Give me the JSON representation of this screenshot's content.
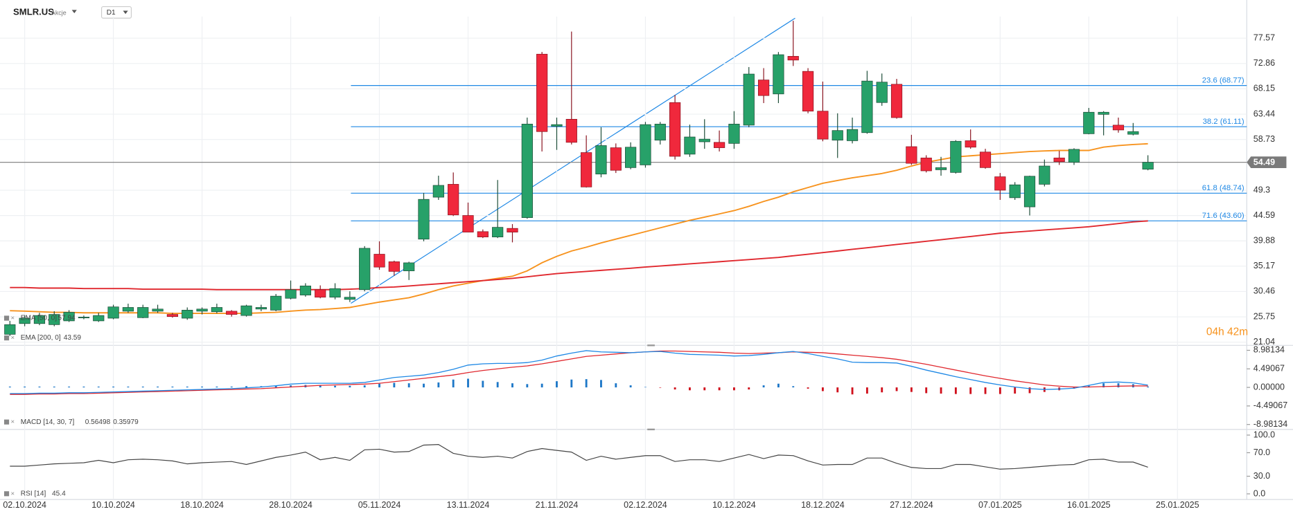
{
  "header": {
    "symbol": "SMLR.US",
    "asset_class": "Akcje",
    "timeframe": "D1"
  },
  "chart_data": [
    {
      "type": "candlestick",
      "categories": [
        null,
        "02.10.2024",
        null,
        null,
        null,
        null,
        null,
        "10.10.2024",
        null,
        null,
        null,
        null,
        null,
        "18.10.2024",
        null,
        null,
        null,
        null,
        null,
        "28.10.2024",
        null,
        null,
        null,
        null,
        null,
        "05.11.2024",
        null,
        null,
        null,
        null,
        null,
        "13.11.2024",
        null,
        null,
        null,
        null,
        null,
        "21.11.2024",
        null,
        null,
        null,
        null,
        null,
        "02.12.2024",
        null,
        null,
        null,
        null,
        null,
        "10.12.2024",
        null,
        null,
        null,
        null,
        null,
        "18.12.2024",
        null,
        null,
        null,
        null,
        null,
        "27.12.2024",
        null,
        null,
        null,
        null,
        null,
        "07.01.2025",
        null,
        null,
        null,
        null,
        null,
        "16.01.2025",
        null,
        null,
        null,
        null,
        null,
        "25.01.2025"
      ],
      "open": [
        22.5,
        24.5,
        24.5,
        24.3,
        25,
        25.6,
        25,
        25.5,
        26.8,
        25.6,
        26.8,
        26.2,
        25.5,
        26.8,
        26.7,
        26.8,
        26,
        27.2,
        27,
        29.2,
        29.8,
        30.8,
        29.4,
        29,
        30.8,
        37.4,
        36,
        34.3,
        40.2,
        48,
        50.4,
        44.6,
        41.6,
        40.6,
        42.2,
        44.2,
        74.6,
        61.2,
        62.5,
        56.3,
        52.3,
        57.2,
        53.5,
        54,
        58.6,
        65.6,
        56,
        58.3,
        58.2,
        58,
        61.4,
        69.8,
        67.2,
        74.2,
        71.4,
        64,
        58.6,
        58.5,
        60,
        65.6,
        69,
        57.4,
        55.3,
        53.1,
        52.6,
        58.5,
        56.4,
        51.8,
        47.9,
        46.2,
        50.4,
        55.3,
        54.5,
        59.8,
        63.4,
        61.4,
        59.7,
        53.2,
        null,
        null
      ],
      "high": [
        25,
        26,
        26.5,
        26.8,
        27,
        26,
        26.5,
        28,
        28.2,
        28,
        28,
        26.5,
        27.5,
        27.5,
        28.2,
        27,
        28,
        28,
        30,
        32.5,
        32,
        31.6,
        32,
        30.5,
        38.9,
        39.8,
        36.2,
        36,
        48.8,
        52,
        52.6,
        47,
        42,
        51.2,
        43,
        62.8,
        75,
        62.8,
        78.8,
        59.5,
        61,
        58,
        58.2,
        62,
        62,
        67,
        61.5,
        62.5,
        60.4,
        64,
        72.2,
        72,
        75,
        80.8,
        72,
        69.5,
        63.6,
        62.8,
        71.5,
        71,
        70,
        59.6,
        55.8,
        55.5,
        58.6,
        60.6,
        57,
        52.5,
        50.8,
        52,
        55,
        56.6,
        57.1,
        64.6,
        64,
        62.8,
        61.8,
        55.8,
        null,
        null
      ],
      "low": [
        22.2,
        24,
        24.2,
        24,
        24.8,
        25.3,
        24.8,
        25.3,
        26.5,
        25.5,
        26.5,
        25.6,
        25.2,
        26.2,
        26.4,
        25.8,
        25.8,
        26.8,
        26.8,
        29,
        29.5,
        29.2,
        29,
        28.5,
        30.5,
        34.5,
        33.4,
        32.6,
        39.8,
        47.5,
        44.5,
        41.5,
        40.4,
        40.4,
        39.6,
        44,
        56.5,
        56.8,
        57.8,
        49.8,
        51.7,
        52.5,
        53.2,
        53.5,
        57.8,
        55,
        55.5,
        57,
        56.5,
        57,
        61,
        65.5,
        65.5,
        72.4,
        63.6,
        58.4,
        55.3,
        58,
        59.8,
        65,
        62.6,
        54,
        52.6,
        52,
        52.4,
        57,
        53.3,
        47.5,
        47.5,
        44.6,
        50,
        54,
        54,
        59.7,
        59.5,
        60,
        59.5,
        53,
        null,
        null
      ],
      "close": [
        24.3,
        25.5,
        26,
        26.2,
        26.6,
        25.7,
        26,
        27.6,
        27.5,
        27.5,
        27.2,
        25.8,
        27,
        27.2,
        27.5,
        26.2,
        27.8,
        27.5,
        29.6,
        30.8,
        31.5,
        29.4,
        31,
        29.4,
        38.5,
        35,
        34.2,
        35.8,
        47.6,
        50.2,
        44.7,
        41.5,
        40.6,
        42.4,
        41.5,
        61.6,
        60.2,
        61.5,
        58.2,
        49.9,
        57.6,
        53,
        57.3,
        61.5,
        61.6,
        55.6,
        59.2,
        58.8,
        57.2,
        61.6,
        70.9,
        66.9,
        74.5,
        73.5,
        64,
        58.8,
        60.4,
        60.6,
        69.6,
        69.4,
        62.8,
        54.3,
        52.9,
        53.5,
        58.4,
        57.3,
        53.5,
        49.3,
        50.3,
        51.9,
        53.8,
        54.6,
        56.9,
        63.8,
        63.8,
        60.5,
        60.2,
        54.49,
        null,
        null
      ],
      "up_color": "#27a169",
      "down_color": "#f0283c",
      "ylim": [
        20.6,
        81.6
      ],
      "yticks": [
        77.57,
        72.86,
        68.15,
        63.44,
        58.73,
        49.3,
        44.59,
        39.88,
        35.17,
        30.46,
        25.75,
        21.04
      ],
      "grid": true,
      "current_price": 54.49,
      "fib_levels": [
        {
          "value": 68.77,
          "label": "23.6 (68.77)"
        },
        {
          "value": 61.11,
          "label": "38.2 (61.11)"
        },
        {
          "value": 48.74,
          "label": "61.8 (48.74)"
        },
        {
          "value": 43.6,
          "label": "71.6 (43.60)"
        }
      ],
      "fib_color": "#1e88e5",
      "series": [
        {
          "name": "EMA [50, 0]",
          "color": "#f7931e",
          "values": [
            26.9,
            26.8,
            26.7,
            26.6,
            26.6,
            26.5,
            26.5,
            26.5,
            26.5,
            26.5,
            26.5,
            26.4,
            26.4,
            26.4,
            26.4,
            26.4,
            26.4,
            26.5,
            26.6,
            26.8,
            27.0,
            27.1,
            27.3,
            27.5,
            28.0,
            28.5,
            28.9,
            29.3,
            30.0,
            30.8,
            31.5,
            32.0,
            32.5,
            32.9,
            33.3,
            34.3,
            35.8,
            37.0,
            38.0,
            38.7,
            39.5,
            40.2,
            40.9,
            41.6,
            42.3,
            43.0,
            43.7,
            44.3,
            44.9,
            45.5,
            46.3,
            47.2,
            48.0,
            49.0,
            49.8,
            50.6,
            51.1,
            51.6,
            52.0,
            52.4,
            53.0,
            53.8,
            54.5,
            55.0,
            55.5,
            55.7,
            55.9,
            56.1,
            56.3,
            56.5,
            56.6,
            56.7,
            56.7,
            56.7,
            57.3,
            57.6,
            57.8,
            57.94,
            null,
            null
          ]
        },
        {
          "name": "EMA [200, 0]",
          "color": "#e0282e",
          "values": [
            31.2,
            31.2,
            31.1,
            31.1,
            31.1,
            31.0,
            31.0,
            31.0,
            31.0,
            30.9,
            30.9,
            30.9,
            30.9,
            30.9,
            30.8,
            30.8,
            30.8,
            30.8,
            30.8,
            30.8,
            30.8,
            30.8,
            30.8,
            30.9,
            31.0,
            31.2,
            31.3,
            31.5,
            31.7,
            31.9,
            32.1,
            32.3,
            32.5,
            32.7,
            32.9,
            33.2,
            33.5,
            33.8,
            34.0,
            34.2,
            34.4,
            34.6,
            34.8,
            35.0,
            35.2,
            35.4,
            35.6,
            35.8,
            36.0,
            36.2,
            36.4,
            36.6,
            36.8,
            37.1,
            37.4,
            37.7,
            38.0,
            38.3,
            38.6,
            38.9,
            39.2,
            39.5,
            39.8,
            40.1,
            40.4,
            40.7,
            41.0,
            41.3,
            41.5,
            41.7,
            41.9,
            42.1,
            42.3,
            42.5,
            42.8,
            43.1,
            43.4,
            43.59,
            null,
            null
          ]
        }
      ],
      "countdown": "04h 42m"
    },
    {
      "type": "macd",
      "name": "MACD [14, 30, 7]",
      "ylim": [
        -9.98,
        9.98
      ],
      "yticks": [
        8.98134,
        4.49067,
        {
          "value": 0,
          "label": "0.00000"
        },
        -4.49067,
        -8.98134
      ],
      "macd": {
        "color": "#1e88e5",
        "values": [
          -1.5,
          -1.5,
          -1.4,
          -1.4,
          -1.3,
          -1.3,
          -1.2,
          -1.1,
          -1.0,
          -0.9,
          -0.8,
          -0.7,
          -0.6,
          -0.5,
          -0.4,
          -0.3,
          -0.1,
          0.1,
          0.4,
          0.8,
          1.0,
          1.0,
          1.0,
          1.0,
          1.2,
          1.8,
          2.4,
          2.7,
          3.0,
          3.6,
          4.4,
          5.4,
          5.7,
          5.8,
          5.8,
          6.0,
          6.6,
          7.6,
          8.3,
          8.9,
          8.6,
          8.5,
          8.4,
          8.6,
          8.7,
          8.3,
          8.0,
          7.9,
          7.8,
          7.6,
          7.7,
          8.0,
          8.4,
          8.7,
          8.2,
          7.5,
          6.9,
          6.1,
          6.0,
          6.0,
          5.9,
          5.1,
          4.2,
          3.4,
          2.6,
          1.9,
          1.2,
          0.6,
          0.1,
          -0.3,
          -0.5,
          -0.4,
          -0.2,
          0.5,
          1.2,
          1.3,
          1.1,
          0.56498,
          null,
          null
        ]
      },
      "signal": {
        "color": "#e0282e",
        "values": [
          -1.7,
          -1.7,
          -1.6,
          -1.6,
          -1.5,
          -1.5,
          -1.4,
          -1.3,
          -1.2,
          -1.1,
          -1.0,
          -0.9,
          -0.8,
          -0.7,
          -0.6,
          -0.5,
          -0.4,
          -0.3,
          -0.1,
          0.1,
          0.3,
          0.5,
          0.6,
          0.7,
          0.8,
          1.0,
          1.4,
          1.8,
          2.2,
          2.6,
          3.0,
          3.6,
          4.1,
          4.5,
          4.9,
          5.2,
          5.7,
          6.3,
          6.9,
          7.5,
          7.8,
          8.1,
          8.4,
          8.6,
          8.8,
          8.8,
          8.7,
          8.6,
          8.5,
          8.3,
          8.2,
          8.3,
          8.4,
          8.6,
          8.5,
          8.4,
          8.1,
          7.8,
          7.5,
          7.2,
          6.8,
          6.2,
          5.6,
          4.9,
          4.2,
          3.5,
          2.8,
          2.2,
          1.6,
          1.1,
          0.6,
          0.3,
          0.1,
          0.1,
          0.2,
          0.3,
          0.35,
          0.35979,
          null,
          null
        ]
      },
      "histogram": {
        "up_color": "#1e78c8",
        "down_color": "#d0101c",
        "values": [
          0.2,
          0.2,
          0.2,
          0.2,
          0.2,
          0.2,
          0.2,
          0.2,
          0.2,
          0.2,
          0.2,
          0.2,
          0.2,
          0.2,
          0.2,
          0.2,
          0.3,
          0.3,
          0.4,
          0.5,
          0.6,
          0.5,
          0.4,
          0.4,
          0.5,
          0.9,
          1.1,
          1.0,
          0.9,
          1.2,
          1.9,
          2.1,
          1.6,
          1.3,
          1.0,
          0.8,
          0.9,
          1.5,
          1.9,
          2.0,
          1.8,
          1.0,
          0.5,
          0.1,
          -0.1,
          -0.5,
          -0.7,
          -0.7,
          -0.7,
          -0.7,
          -0.5,
          0.5,
          0.9,
          0.3,
          -0.3,
          -0.9,
          -1.2,
          -1.7,
          -1.5,
          -1.2,
          -0.9,
          -1.1,
          -1.4,
          -1.5,
          -1.6,
          -1.6,
          -1.6,
          -1.6,
          -1.5,
          -1.4,
          -1.1,
          -0.7,
          -0.3,
          0.4,
          1.0,
          1.0,
          0.8,
          0.2,
          null,
          null
        ]
      }
    },
    {
      "type": "line",
      "ylim": [
        -8.2,
        106.8
      ],
      "yticks": [
        {
          "value": 100,
          "label": "100.0"
        },
        {
          "value": 70,
          "label": "70.0"
        },
        {
          "value": 30,
          "label": "30.0"
        },
        {
          "value": 0,
          "label": "0.0"
        }
      ],
      "series": [
        {
          "name": "RSI [14]",
          "color": "#444444",
          "values": [
            47,
            47,
            49,
            51,
            52,
            53,
            57,
            53,
            58,
            59,
            58,
            56,
            51,
            53,
            54,
            55,
            50,
            56,
            62,
            66,
            71,
            58,
            62,
            57,
            75,
            76,
            71,
            72,
            83,
            84,
            69,
            64,
            62,
            64,
            61,
            72,
            77,
            74,
            71,
            57,
            64,
            59,
            62,
            65,
            65,
            55,
            58,
            58,
            55,
            61,
            67,
            60,
            66,
            65,
            56,
            49,
            50,
            50,
            61,
            61,
            52,
            45,
            43,
            43,
            50,
            50,
            46,
            42,
            43,
            45,
            47,
            49,
            50,
            58,
            59,
            54,
            54,
            45.4,
            null,
            null
          ]
        }
      ]
    }
  ]
}
